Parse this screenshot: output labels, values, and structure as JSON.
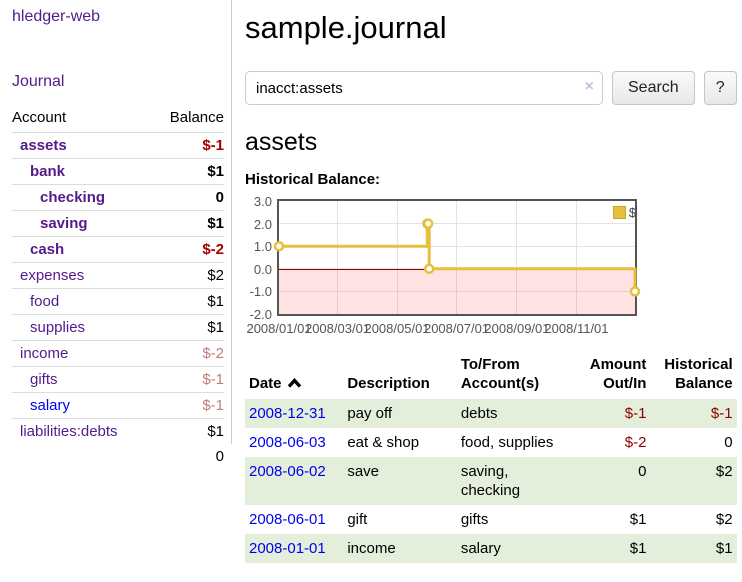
{
  "colors": {
    "accent_purple": "#551a8b",
    "link_blue": "#0000ee",
    "negative_strong": "#a40000",
    "negative_soft": "#bd7d7d",
    "negative_register": "#8f0000",
    "stripe_green": "#e3eedb",
    "chart_gold": "#e6bf3c",
    "chart_zero_line": "#8b0000",
    "chart_negative_region": "rgba(255,0,0,0.11)"
  },
  "sidebar": {
    "brand": "hledger-web",
    "journal_link": "Journal",
    "accounts_table": {
      "headers": {
        "account": "Account",
        "balance": "Balance"
      },
      "rows": [
        {
          "account": "assets",
          "balance": "$-1",
          "depth": 1,
          "bold": true,
          "balance_style": "neg-strong",
          "visited": true
        },
        {
          "account": "bank",
          "balance": "$1",
          "depth": 2,
          "bold": true,
          "balance_style": "pos",
          "visited": true
        },
        {
          "account": "checking",
          "balance": "0",
          "depth": 3,
          "bold": true,
          "balance_style": "pos",
          "visited": true
        },
        {
          "account": "saving",
          "balance": "$1",
          "depth": 3,
          "bold": true,
          "balance_style": "pos",
          "visited": true
        },
        {
          "account": "cash",
          "balance": "$-2",
          "depth": 2,
          "bold": true,
          "balance_style": "neg-strong",
          "visited": true
        },
        {
          "account": "expenses",
          "balance": "$2",
          "depth": 1,
          "bold": false,
          "balance_style": "pos",
          "visited": true
        },
        {
          "account": "food",
          "balance": "$1",
          "depth": 2,
          "bold": false,
          "balance_style": "pos",
          "visited": true
        },
        {
          "account": "supplies",
          "balance": "$1",
          "depth": 2,
          "bold": false,
          "balance_style": "pos",
          "visited": true
        },
        {
          "account": "income",
          "balance": "$-2",
          "depth": 1,
          "bold": false,
          "balance_style": "neg-soft",
          "visited": true
        },
        {
          "account": "gifts",
          "balance": "$-1",
          "depth": 2,
          "bold": false,
          "balance_style": "neg-soft",
          "visited": true
        },
        {
          "account": "salary",
          "balance": "$-1",
          "depth": 2,
          "bold": false,
          "balance_style": "neg-soft",
          "visited": false
        },
        {
          "account": "liabilities:debts",
          "balance": "$1",
          "depth": 1,
          "bold": false,
          "balance_style": "pos",
          "visited": true
        }
      ],
      "total": "0"
    }
  },
  "header": {
    "title": "sample.journal"
  },
  "search": {
    "value": "inacct:assets",
    "clear_icon": "×",
    "button_label": "Search",
    "help_label": "?"
  },
  "account_page": {
    "heading": "assets",
    "chart_title": "Historical Balance:"
  },
  "chart_data": {
    "type": "line",
    "mode": "steps",
    "title": "Historical Balance:",
    "series": [
      {
        "name": "$",
        "color": "#e6bf3c",
        "points": [
          {
            "date": "2008-01-01",
            "value": 1
          },
          {
            "date": "2008-06-01",
            "value": 2
          },
          {
            "date": "2008-06-02",
            "value": 2
          },
          {
            "date": "2008-06-03",
            "value": 0
          },
          {
            "date": "2008-12-31",
            "value": -1
          }
        ]
      }
    ],
    "x_range": [
      "2008-01-01",
      "2008-12-31"
    ],
    "ylim": [
      -2,
      3
    ],
    "y_ticks": [
      "3.0",
      "2.0",
      "1.0",
      "0.0",
      "-1.0",
      "-2.0"
    ],
    "x_ticks": [
      {
        "date": "2008-01-01",
        "label": "2008/01/01"
      },
      {
        "date": "2008-03-01",
        "label": "2008/03/01"
      },
      {
        "date": "2008-05-01",
        "label": "2008/05/01"
      },
      {
        "date": "2008-07-01",
        "label": "2008/07/01"
      },
      {
        "date": "2008-09-01",
        "label": "2008/09/01"
      },
      {
        "date": "2008-11-01",
        "label": "2008/11/01"
      }
    ],
    "grid": true,
    "legend": {
      "label": "$",
      "position": "top-right"
    },
    "negative_region_below": 0
  },
  "register": {
    "columns": [
      "Date",
      "Description",
      "To/From Account(s)",
      "Amount Out/In",
      "Historical Balance"
    ],
    "sort": {
      "column": "Date",
      "direction": "ascending"
    },
    "rows": [
      {
        "date": "2008-12-31",
        "description": "pay off",
        "accounts": "debts",
        "amount": "$-1",
        "amount_negative": true,
        "balance": "$-1",
        "balance_negative": true
      },
      {
        "date": "2008-06-03",
        "description": "eat & shop",
        "accounts": "food, supplies",
        "amount": "$-2",
        "amount_negative": true,
        "balance": "0",
        "balance_negative": false
      },
      {
        "date": "2008-06-02",
        "description": "save",
        "accounts": "saving, checking",
        "amount": "0",
        "amount_negative": false,
        "balance": "$2",
        "balance_negative": false
      },
      {
        "date": "2008-06-01",
        "description": "gift",
        "accounts": "gifts",
        "amount": "$1",
        "amount_negative": false,
        "balance": "$2",
        "balance_negative": false
      },
      {
        "date": "2008-01-01",
        "description": "income",
        "accounts": "salary",
        "amount": "$1",
        "amount_negative": false,
        "balance": "$1",
        "balance_negative": false
      }
    ]
  }
}
